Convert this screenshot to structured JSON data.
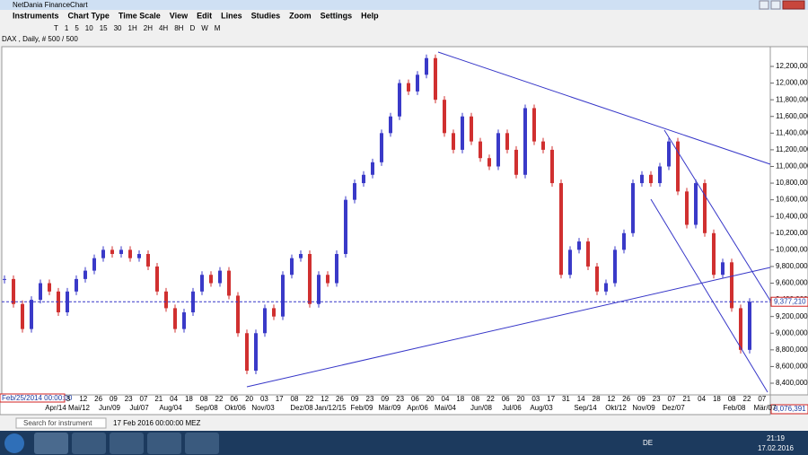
{
  "window": {
    "title": "NetDania FinanceChart",
    "menu": [
      "Instruments",
      "Chart Type",
      "Time Scale",
      "View",
      "Edit",
      "Lines",
      "Studies",
      "Zoom",
      "Settings",
      "Help"
    ],
    "toolbar": [
      "T",
      "1",
      "5",
      "10",
      "15",
      "30",
      "1H",
      "2H",
      "4H",
      "8H",
      "D",
      "W",
      "M"
    ]
  },
  "chart": {
    "instrument_label": "DAX , Daily, # 500 / 500",
    "type": "candlestick",
    "closes": [
      9650000,
      9350000,
      9050000,
      9400000,
      9600000,
      9500000,
      9250000,
      9500000,
      9650000,
      9750000,
      9900000,
      10000000,
      9950000,
      10000000,
      9900000,
      9950000,
      9800000,
      9500000,
      9300000,
      9050000,
      9250000,
      9500000,
      9700000,
      9600000,
      9750000,
      9450000,
      9000000,
      8550000,
      9000000,
      9300000,
      9200000,
      9700000,
      9900000,
      9950000,
      9350000,
      9700000,
      9600000,
      9950000,
      10600000,
      10800000,
      10900000,
      11050000,
      11400000,
      11600000,
      12000000,
      11900000,
      12100000,
      12300000,
      11800000,
      11400000,
      11200000,
      11600000,
      11300000,
      11100000,
      11000000,
      11400000,
      11200000,
      10900000,
      11700000,
      11300000,
      11200000,
      10800000,
      9700000,
      10000000,
      10100000,
      9800000,
      9500000,
      9600000,
      10000000,
      10200000,
      10800000,
      10900000,
      10800000,
      11000000,
      11300000,
      10700000,
      10300000,
      10800000,
      10200000,
      9700000,
      9850000,
      9300000,
      8800000,
      9377210
    ],
    "up_color": "#3a3ac8",
    "down_color": "#d03030",
    "ylim": [
      8260000,
      12437000
    ],
    "yticks": [
      {
        "value": 8400000,
        "label": "8,400,000"
      },
      {
        "value": 8600000,
        "label": "8,600,000"
      },
      {
        "value": 8800000,
        "label": "8,800,000"
      },
      {
        "value": 9000000,
        "label": "9,000,000"
      },
      {
        "value": 9200000,
        "label": "9,200,000"
      },
      {
        "value": 9400000,
        "label": "9,400,000"
      },
      {
        "value": 9600000,
        "label": "9,600,000"
      },
      {
        "value": 9800000,
        "label": "9,800,000"
      },
      {
        "value": 10000000,
        "label": "10,000,000"
      },
      {
        "value": 10200000,
        "label": "10,200,000"
      },
      {
        "value": 10400000,
        "label": "10,400,000"
      },
      {
        "value": 10600000,
        "label": "10,600,000"
      },
      {
        "value": 10800000,
        "label": "10,800,000"
      },
      {
        "value": 11000000,
        "label": "11,000,000"
      },
      {
        "value": 11200000,
        "label": "11,200,000"
      },
      {
        "value": 11400000,
        "label": "11,400,000"
      },
      {
        "value": 11600000,
        "label": "11,600,000"
      },
      {
        "value": 11800000,
        "label": "11,800,000"
      },
      {
        "value": 12000000,
        "label": "12,000,000"
      },
      {
        "value": 12200000,
        "label": "12,200,000"
      }
    ],
    "last_price": {
      "value": 9377210,
      "label": "9,377,210"
    },
    "bottom_label": "8,076,391",
    "cursor_date": "Feb/25/2014 00:00:00",
    "day_labels": [
      "3",
      "12",
      "26",
      "09",
      "23",
      "07",
      "21",
      "04",
      "18",
      "08",
      "22",
      "06",
      "20",
      "03",
      "17",
      "08",
      "22",
      "12",
      "26",
      "09",
      "23",
      "09",
      "23",
      "06",
      "20",
      "04",
      "18",
      "08",
      "22",
      "06",
      "20",
      "03",
      "17",
      "31",
      "14",
      "28",
      "12",
      "26",
      "09",
      "23",
      "07",
      "21",
      "04",
      "18",
      "08",
      "22",
      "07"
    ],
    "month_labels": [
      "Apr/14",
      "Mai/12",
      "Jun/09",
      "Jul/07",
      "Aug/04",
      "Sep/08",
      "Okt/06",
      "Nov/03",
      "Dez/08",
      "Jan/12/15",
      "Feb/09",
      "Mär/09",
      "Apr/06",
      "Mai/04",
      "Jun/08",
      "Jul/06",
      "Aug/03",
      "Sep/14",
      "Okt/12",
      "Nov/09",
      "Dez/07",
      "Feb/08",
      "Mär/07"
    ]
  },
  "statusbar": {
    "search": "Search for instrument",
    "datetime": "17 Feb 2016 00:00:00 MEZ"
  },
  "taskbar": {
    "language": "DE",
    "time": "21:19",
    "date": "17.02.2016"
  }
}
